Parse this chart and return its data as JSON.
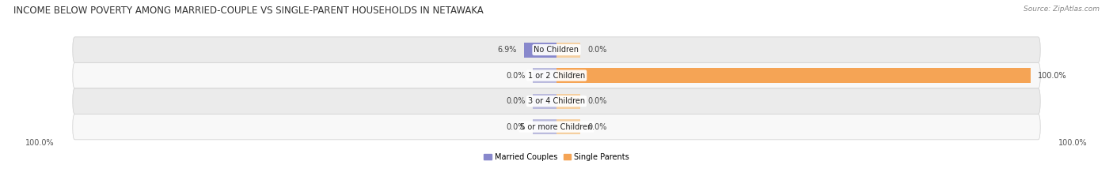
{
  "title": "INCOME BELOW POVERTY AMONG MARRIED-COUPLE VS SINGLE-PARENT HOUSEHOLDS IN NETAWAKA",
  "source": "Source: ZipAtlas.com",
  "categories": [
    "No Children",
    "1 or 2 Children",
    "3 or 4 Children",
    "5 or more Children"
  ],
  "married_values": [
    6.9,
    0.0,
    0.0,
    0.0
  ],
  "single_values": [
    0.0,
    100.0,
    0.0,
    0.0
  ],
  "married_color": "#8888cc",
  "single_color": "#f5a455",
  "married_stub_color": "#bbbbdd",
  "single_stub_color": "#f5cfa0",
  "row_bg_even": "#ebebeb",
  "row_bg_odd": "#f8f8f8",
  "title_fontsize": 8.5,
  "label_fontsize": 7.0,
  "value_fontsize": 7.0,
  "source_fontsize": 6.5,
  "max_val": 100.0,
  "stub_size": 5.0,
  "bottom_left_label": "100.0%",
  "bottom_right_label": "100.0%"
}
